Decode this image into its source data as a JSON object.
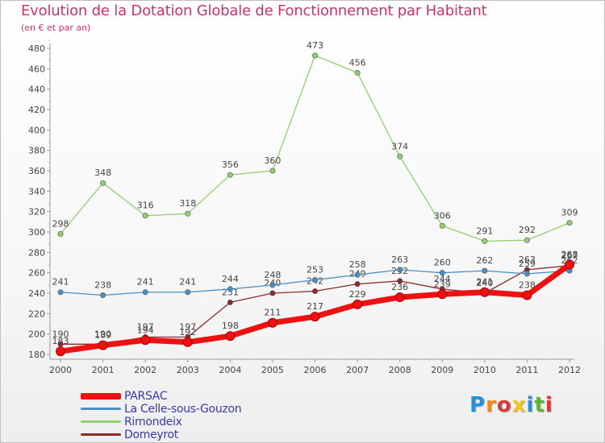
{
  "title": "Evolution de la Dotation Globale de Fonctionnement par Habitant",
  "subtitle": "(en € et par an)",
  "logo": {
    "text": "Proxiti",
    "letter_colors": [
      "#2a8fd8",
      "#f08a1c",
      "#d83a3a",
      "#f0c81c",
      "#2a8fd8",
      "#5ab82e",
      "#d83a3a"
    ]
  },
  "chart_data": {
    "type": "line",
    "title": "Evolution de la Dotation Globale de Fonctionnement par Habitant",
    "ylabel": "(en € et par an)",
    "xlabel": "",
    "ylim": [
      180,
      480
    ],
    "yticks": [
      180,
      200,
      220,
      240,
      260,
      280,
      300,
      320,
      340,
      360,
      380,
      400,
      420,
      440,
      460,
      480
    ],
    "x": [
      "2000",
      "2001",
      "2002",
      "2003",
      "2004",
      "2005",
      "2006",
      "2007",
      "2008",
      "2009",
      "2010",
      "2011",
      "2012"
    ],
    "grid": false,
    "legend_position": "bottom-left",
    "series": [
      {
        "name": "Domeyrot",
        "color": "#8b2a2a",
        "values": [
          190,
          190,
          197,
          197,
          231,
          240,
          242,
          249,
          252,
          244,
          240,
          263,
          267
        ]
      },
      {
        "name": "La Celle-sous-Gouzon",
        "color": "#4a90c8",
        "values": [
          241,
          238,
          241,
          241,
          244,
          248,
          253,
          258,
          263,
          260,
          262,
          259,
          262
        ]
      },
      {
        "name": "Rimondeix",
        "color": "#90d070",
        "values": [
          298,
          348,
          316,
          318,
          356,
          360,
          473,
          456,
          374,
          306,
          291,
          292,
          309
        ]
      },
      {
        "name": "PARSAC",
        "color": "#ee1111",
        "values": [
          183,
          189,
          194,
          192,
          198,
          211,
          217,
          229,
          236,
          239,
          241,
          238,
          268
        ]
      }
    ]
  },
  "legend": [
    {
      "name": "PARSAC",
      "color": "#ee1111"
    },
    {
      "name": "La Celle-sous-Gouzon",
      "color": "#4a90c8"
    },
    {
      "name": "Rimondeix",
      "color": "#90d070"
    },
    {
      "name": "Domeyrot",
      "color": "#8b2a2a"
    }
  ]
}
